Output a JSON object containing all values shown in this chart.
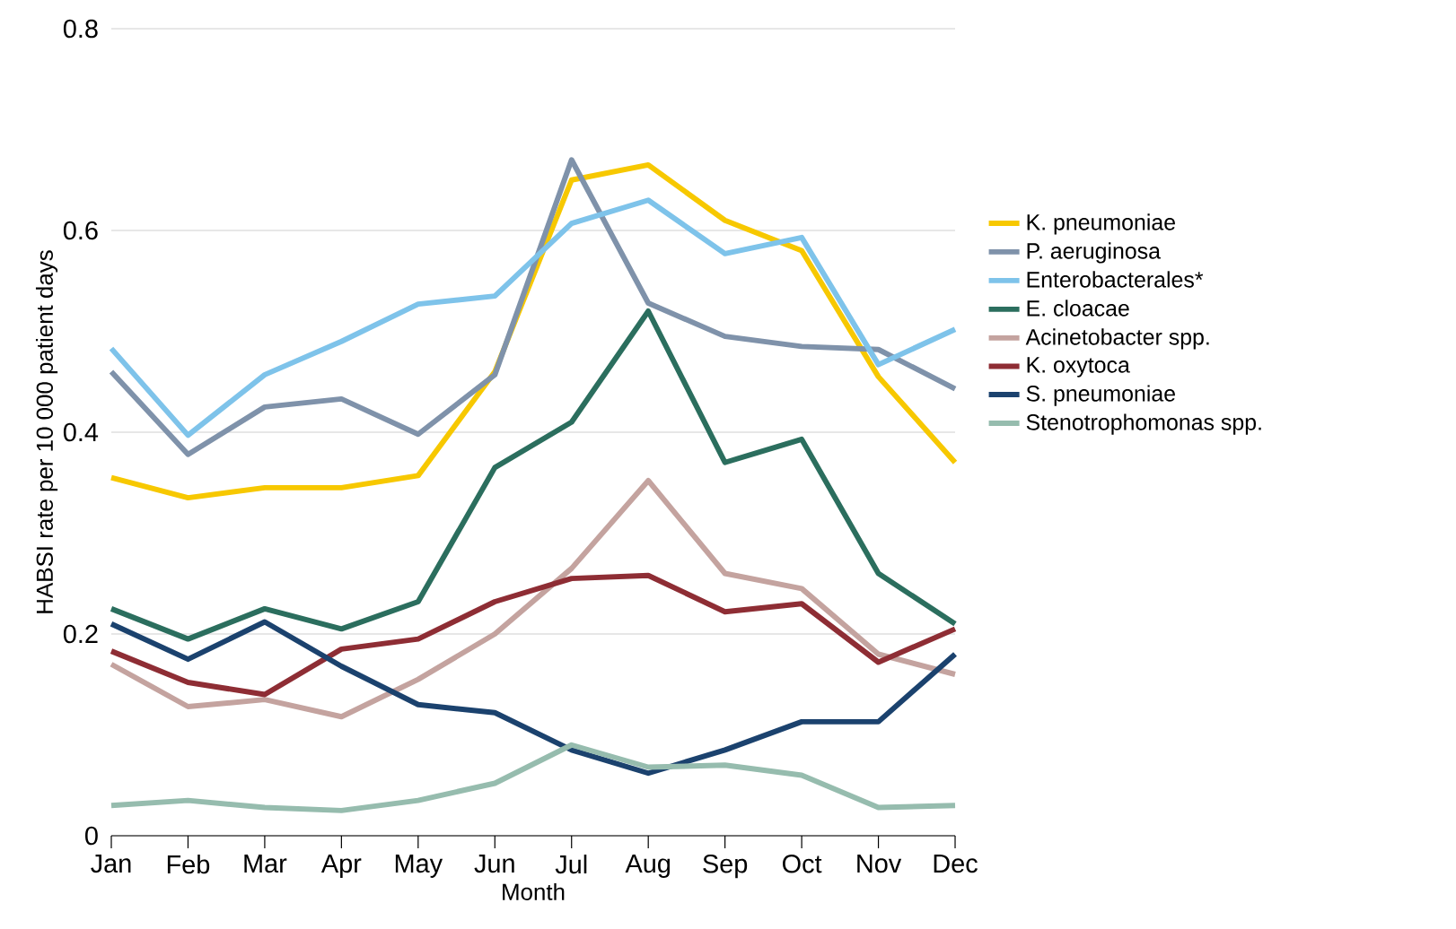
{
  "chart_data": {
    "type": "line",
    "xlabel": "Month",
    "ylabel": "HABSI rate per 10 000 patient days",
    "categories": [
      "Jan",
      "Feb",
      "Mar",
      "Apr",
      "May",
      "Jun",
      "Jul",
      "Aug",
      "Sep",
      "Oct",
      "Nov",
      "Dec"
    ],
    "series": [
      {
        "name": "K. pneumoniae",
        "color": "#f7c800",
        "values": [
          0.355,
          0.335,
          0.345,
          0.345,
          0.357,
          0.46,
          0.65,
          0.665,
          0.61,
          0.58,
          0.455,
          0.37
        ]
      },
      {
        "name": "P. aeruginosa",
        "color": "#7f92aa",
        "values": [
          0.46,
          0.378,
          0.425,
          0.433,
          0.398,
          0.457,
          0.67,
          0.528,
          0.495,
          0.485,
          0.482,
          0.443
        ]
      },
      {
        "name": "Enterobacterales*",
        "color": "#7ec3ea",
        "values": [
          0.483,
          0.397,
          0.457,
          0.49,
          0.527,
          0.535,
          0.607,
          0.63,
          0.577,
          0.593,
          0.467,
          0.502
        ]
      },
      {
        "name": "E. cloacae",
        "color": "#2b6e5e",
        "values": [
          0.225,
          0.195,
          0.225,
          0.205,
          0.232,
          0.365,
          0.41,
          0.52,
          0.37,
          0.393,
          0.26,
          0.21
        ]
      },
      {
        "name": "Acinetobacter spp.",
        "color": "#c4a39f",
        "values": [
          0.17,
          0.128,
          0.135,
          0.118,
          0.155,
          0.2,
          0.265,
          0.352,
          0.26,
          0.245,
          0.18,
          0.16
        ]
      },
      {
        "name": "K. oxytoca",
        "color": "#8e2d34",
        "values": [
          0.183,
          0.152,
          0.14,
          0.185,
          0.195,
          0.232,
          0.255,
          0.258,
          0.222,
          0.23,
          0.172,
          0.205
        ]
      },
      {
        "name": "S. pneumoniae",
        "color": "#1b426e",
        "values": [
          0.21,
          0.175,
          0.212,
          0.168,
          0.13,
          0.122,
          0.085,
          0.062,
          0.085,
          0.113,
          0.113,
          0.18
        ]
      },
      {
        "name": "Stenotrophomonas spp.",
        "color": "#96bcae",
        "values": [
          0.03,
          0.035,
          0.028,
          0.025,
          0.035,
          0.052,
          0.09,
          0.068,
          0.07,
          0.06,
          0.028,
          0.03
        ]
      }
    ],
    "ylim": [
      0,
      0.8
    ],
    "yticks": [
      0,
      0.2,
      0.4,
      0.6,
      0.8
    ],
    "grid": "y",
    "legend": "right",
    "marker": "none",
    "line_style": "solid"
  }
}
